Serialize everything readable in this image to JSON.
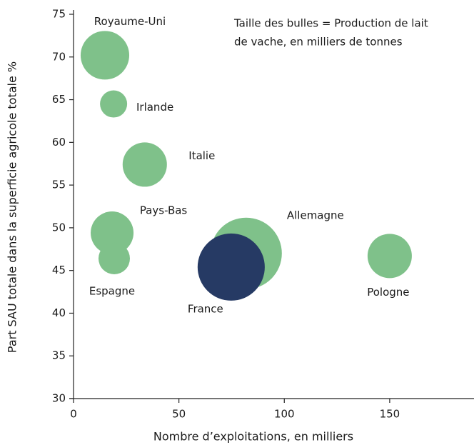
{
  "chart_data": {
    "type": "scatter",
    "xlabel": "Nombre d’exploitations, en milliers",
    "ylabel": "Part SAU totale dans la superficie agricole totale %",
    "annotation": [
      "Taille des bulles = Production de lait",
      "de vache, en milliers de tonnes"
    ],
    "labels": [
      "Royaume-Uni",
      "Irlande",
      "Italie",
      "Pays-Bas",
      "Espagne",
      "Allemagne",
      "France",
      "Pologne"
    ],
    "x": [
      14.9,
      19,
      33.8,
      18.3,
      19.3,
      81.9,
      74.8,
      150
    ],
    "values": [
      70.2,
      64.5,
      57.4,
      49.4,
      46.4,
      47.0,
      45.4,
      46.7
    ],
    "sizes": [
      15300,
      4770,
      12700,
      11900,
      6400,
      33000,
      29200,
      12700
    ],
    "colors": [
      "#7fc18a",
      "#7fc18a",
      "#7fc18a",
      "#7fc18a",
      "#7fc18a",
      "#7fc18a",
      "#263a64",
      "#7fc18a"
    ],
    "xlim": [
      0,
      190
    ],
    "ylim": [
      30,
      75
    ],
    "xticks": [
      0,
      50,
      100,
      150
    ],
    "yticks": [
      30,
      35,
      40,
      45,
      50,
      55,
      60,
      65,
      70,
      75
    ]
  }
}
